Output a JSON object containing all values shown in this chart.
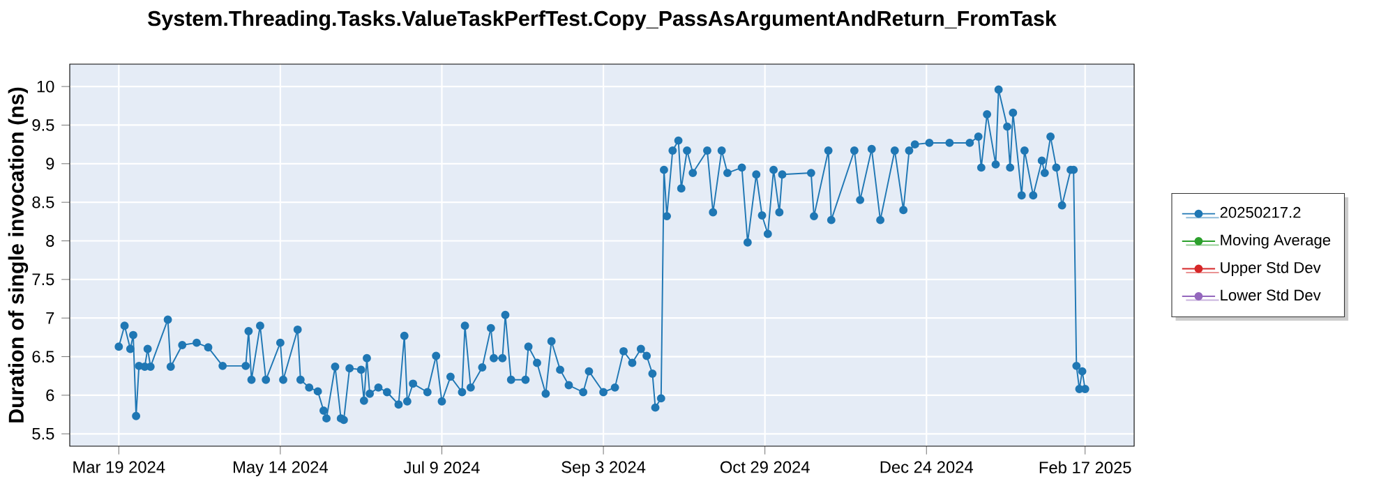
{
  "chart_data": {
    "type": "line",
    "title": "System.Threading.Tasks.ValueTaskPerfTest.Copy_PassAsArgumentAndReturn_FromTask",
    "ylabel": "Duration of single invocation (ns)",
    "x": [
      "2024-03-19",
      "2024-03-21",
      "2024-03-23",
      "2024-03-24",
      "2024-03-25",
      "2024-03-26",
      "2024-03-28",
      "2024-03-29",
      "2024-03-30",
      "2024-04-05",
      "2024-04-06",
      "2024-04-10",
      "2024-04-15",
      "2024-04-19",
      "2024-04-24",
      "2024-05-02",
      "2024-05-03",
      "2024-05-04",
      "2024-05-07",
      "2024-05-09",
      "2024-05-14",
      "2024-05-15",
      "2024-05-20",
      "2024-05-21",
      "2024-05-24",
      "2024-05-27",
      "2024-05-29",
      "2024-05-30",
      "2024-06-02",
      "2024-06-04",
      "2024-06-05",
      "2024-06-07",
      "2024-06-11",
      "2024-06-12",
      "2024-06-13",
      "2024-06-14",
      "2024-06-17",
      "2024-06-20",
      "2024-06-24",
      "2024-06-26",
      "2024-06-27",
      "2024-06-29",
      "2024-07-04",
      "2024-07-07",
      "2024-07-09",
      "2024-07-12",
      "2024-07-16",
      "2024-07-17",
      "2024-07-19",
      "2024-07-23",
      "2024-07-26",
      "2024-07-27",
      "2024-07-30",
      "2024-07-31",
      "2024-08-02",
      "2024-08-07",
      "2024-08-08",
      "2024-08-11",
      "2024-08-14",
      "2024-08-16",
      "2024-08-19",
      "2024-08-22",
      "2024-08-27",
      "2024-08-29",
      "2024-09-03",
      "2024-09-07",
      "2024-09-10",
      "2024-09-13",
      "2024-09-16",
      "2024-09-18",
      "2024-09-20",
      "2024-09-21",
      "2024-09-23",
      "2024-09-24",
      "2024-09-25",
      "2024-09-27",
      "2024-09-29",
      "2024-09-30",
      "2024-10-02",
      "2024-10-04",
      "2024-10-09",
      "2024-10-11",
      "2024-10-14",
      "2024-10-16",
      "2024-10-21",
      "2024-10-23",
      "2024-10-26",
      "2024-10-28",
      "2024-10-30",
      "2024-11-01",
      "2024-11-03",
      "2024-11-04",
      "2024-11-14",
      "2024-11-15",
      "2024-11-20",
      "2024-11-21",
      "2024-11-29",
      "2024-12-01",
      "2024-12-05",
      "2024-12-08",
      "2024-12-13",
      "2024-12-16",
      "2024-12-18",
      "2024-12-20",
      "2024-12-25",
      "2025-01-01",
      "2025-01-08",
      "2025-01-11",
      "2025-01-12",
      "2025-01-14",
      "2025-01-17",
      "2025-01-18",
      "2025-01-21",
      "2025-01-22",
      "2025-01-23",
      "2025-01-26",
      "2025-01-27",
      "2025-01-30",
      "2025-02-02",
      "2025-02-03",
      "2025-02-05",
      "2025-02-07",
      "2025-02-09",
      "2025-02-12",
      "2025-02-13",
      "2025-02-14",
      "2025-02-15",
      "2025-02-16",
      "2025-02-17"
    ],
    "series": [
      {
        "name": "20250217.2",
        "color": "#1f77b4",
        "values": [
          6.63,
          6.9,
          6.6,
          6.78,
          5.73,
          6.38,
          6.37,
          6.6,
          6.37,
          6.98,
          6.37,
          6.65,
          6.68,
          6.62,
          6.38,
          6.38,
          6.83,
          6.2,
          6.9,
          6.2,
          6.68,
          6.2,
          6.85,
          6.2,
          6.1,
          6.05,
          5.8,
          5.7,
          6.37,
          5.7,
          5.68,
          6.35,
          6.33,
          5.93,
          6.48,
          6.02,
          6.1,
          6.04,
          5.88,
          6.77,
          5.92,
          6.15,
          6.04,
          6.51,
          5.92,
          6.24,
          6.04,
          6.9,
          6.1,
          6.36,
          6.87,
          6.48,
          6.48,
          7.04,
          6.2,
          6.2,
          6.63,
          6.42,
          6.02,
          6.7,
          6.33,
          6.13,
          6.04,
          6.31,
          6.04,
          6.1,
          6.57,
          6.42,
          6.6,
          6.51,
          6.28,
          5.84,
          5.96,
          8.92,
          8.32,
          9.17,
          9.3,
          8.68,
          9.17,
          8.88,
          9.17,
          8.37,
          9.17,
          8.88,
          8.95,
          7.98,
          8.86,
          8.33,
          8.09,
          8.92,
          8.37,
          8.86,
          8.88,
          8.32,
          9.17,
          8.27,
          9.17,
          8.53,
          9.19,
          8.27,
          9.17,
          8.4,
          9.17,
          9.25,
          9.27,
          9.27,
          9.27,
          9.35,
          8.95,
          9.64,
          8.99,
          9.96,
          9.48,
          8.95,
          9.66,
          8.59,
          9.17,
          8.59,
          9.04,
          8.88,
          9.35,
          8.95,
          8.46,
          8.92,
          8.92,
          6.38,
          6.08,
          6.31,
          6.08
        ]
      },
      {
        "name": "Moving Average",
        "color": "#2ca02c",
        "values": [
          null,
          null,
          null,
          null,
          null,
          null,
          null,
          null,
          null,
          null,
          null,
          null,
          null,
          null,
          null,
          null,
          null,
          null,
          null,
          null,
          null,
          null,
          null,
          null,
          null,
          null,
          null,
          null,
          null,
          null,
          null,
          null,
          null,
          null,
          null,
          null,
          null,
          null,
          null,
          null,
          null,
          null,
          null,
          null,
          null,
          null,
          null,
          null,
          null,
          null,
          null,
          null,
          null,
          null,
          null,
          null,
          null,
          null,
          null,
          null,
          null,
          null,
          null,
          null,
          null,
          null,
          null,
          null,
          null,
          null,
          null,
          null,
          null,
          null,
          null,
          null,
          null,
          null,
          null,
          null,
          null,
          null,
          null,
          null,
          null,
          null,
          null,
          null,
          null,
          null,
          null,
          null,
          null,
          null,
          null,
          null,
          null,
          null,
          null,
          null,
          null,
          null,
          null,
          null,
          null,
          null,
          null,
          null,
          null,
          null,
          null,
          null,
          null,
          null,
          null,
          null,
          null,
          null,
          null,
          null,
          null,
          null,
          null,
          null,
          null,
          null,
          null,
          null,
          null
        ]
      },
      {
        "name": "Upper Std Dev",
        "color": "#d62728",
        "values": [
          null,
          null,
          null,
          null,
          null,
          null,
          null,
          null,
          null,
          null,
          null,
          null,
          null,
          null,
          null,
          null,
          null,
          null,
          null,
          null,
          null,
          null,
          null,
          null,
          null,
          null,
          null,
          null,
          null,
          null,
          null,
          null,
          null,
          null,
          null,
          null,
          null,
          null,
          null,
          null,
          null,
          null,
          null,
          null,
          null,
          null,
          null,
          null,
          null,
          null,
          null,
          null,
          null,
          null,
          null,
          null,
          null,
          null,
          null,
          null,
          null,
          null,
          null,
          null,
          null,
          null,
          null,
          null,
          null,
          null,
          null,
          null,
          null,
          null,
          null,
          null,
          null,
          null,
          null,
          null,
          null,
          null,
          null,
          null,
          null,
          null,
          null,
          null,
          null,
          null,
          null,
          null,
          null,
          null,
          null,
          null,
          null,
          null,
          null,
          null,
          null,
          null,
          null,
          null,
          null,
          null,
          null,
          null,
          null,
          null,
          null,
          null,
          null,
          null,
          null,
          null,
          null,
          null,
          null,
          null,
          null,
          null,
          null,
          null,
          null,
          null,
          null,
          null,
          null
        ]
      },
      {
        "name": "Lower Std Dev",
        "color": "#9467bd",
        "values": [
          null,
          null,
          null,
          null,
          null,
          null,
          null,
          null,
          null,
          null,
          null,
          null,
          null,
          null,
          null,
          null,
          null,
          null,
          null,
          null,
          null,
          null,
          null,
          null,
          null,
          null,
          null,
          null,
          null,
          null,
          null,
          null,
          null,
          null,
          null,
          null,
          null,
          null,
          null,
          null,
          null,
          null,
          null,
          null,
          null,
          null,
          null,
          null,
          null,
          null,
          null,
          null,
          null,
          null,
          null,
          null,
          null,
          null,
          null,
          null,
          null,
          null,
          null,
          null,
          null,
          null,
          null,
          null,
          null,
          null,
          null,
          null,
          null,
          null,
          null,
          null,
          null,
          null,
          null,
          null,
          null,
          null,
          null,
          null,
          null,
          null,
          null,
          null,
          null,
          null,
          null,
          null,
          null,
          null,
          null,
          null,
          null,
          null,
          null,
          null,
          null,
          null,
          null,
          null,
          null,
          null,
          null,
          null,
          null,
          null,
          null,
          null,
          null,
          null,
          null,
          null,
          null,
          null,
          null,
          null,
          null,
          null,
          null,
          null,
          null,
          null,
          null,
          null,
          null
        ]
      }
    ],
    "xlim": [
      "2024-03-02",
      "2025-03-06"
    ],
    "ylim": [
      5.34,
      10.29
    ],
    "xticks": [
      {
        "value": "2024-03-19",
        "label": "Mar 19 2024"
      },
      {
        "value": "2024-05-14",
        "label": "May 14 2024"
      },
      {
        "value": "2024-07-09",
        "label": "Jul 9 2024"
      },
      {
        "value": "2024-09-03",
        "label": "Sep 3 2024"
      },
      {
        "value": "2024-10-29",
        "label": "Oct 29 2024"
      },
      {
        "value": "2024-12-24",
        "label": "Dec 24 2024"
      },
      {
        "value": "2025-02-17",
        "label": "Feb 17 2025"
      }
    ],
    "yticks": [
      5.5,
      6,
      6.5,
      7,
      7.5,
      8,
      8.5,
      9,
      9.5,
      10
    ],
    "grid": true,
    "legend": "right",
    "marker": "circle"
  }
}
